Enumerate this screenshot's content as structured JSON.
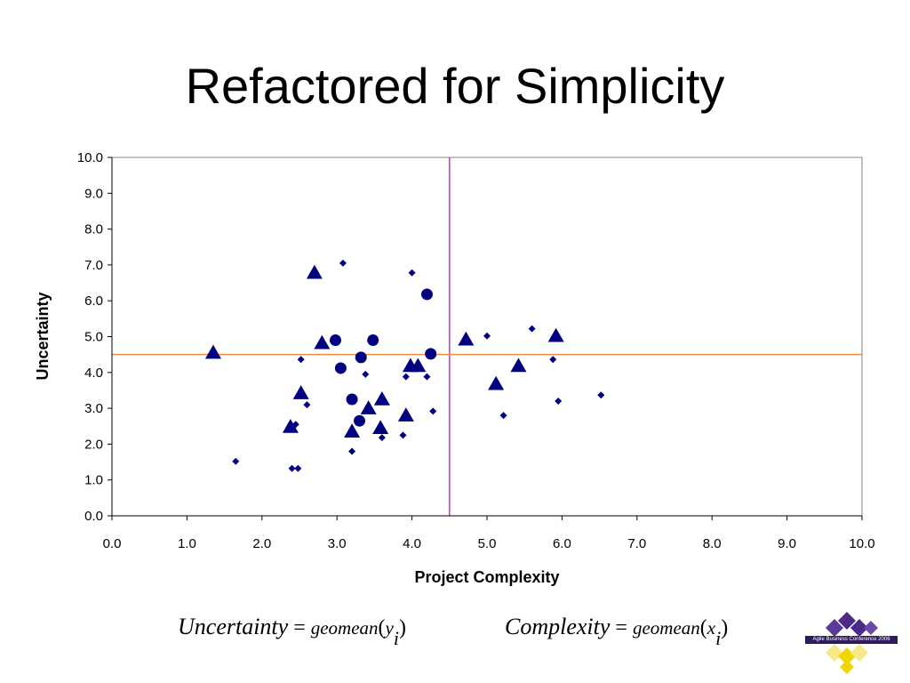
{
  "slide": {
    "title": "Refactored for Simplicity"
  },
  "formulas": {
    "uncertainty": {
      "lhs": "Uncertainty",
      "eq": "=",
      "fn": "geomean",
      "open": "(",
      "arg": "y",
      "sub": "i",
      "close": ")"
    },
    "complexity": {
      "lhs": "Complexity",
      "eq": "=",
      "fn": "geomean",
      "open": "(",
      "arg": "x",
      "sub": "i",
      "close": ")"
    }
  },
  "logo": {
    "text": "Agile Business Conference 2006",
    "colors": [
      "#4b2a8a",
      "#f2d600"
    ]
  },
  "chart_data": {
    "type": "scatter",
    "title": "",
    "xlabel": "Project Complexity",
    "ylabel": "Uncertainty",
    "xlim": [
      0,
      10
    ],
    "ylim": [
      0,
      10
    ],
    "x_ticks": [
      "0.0",
      "1.0",
      "2.0",
      "3.0",
      "4.0",
      "5.0",
      "6.0",
      "7.0",
      "8.0",
      "9.0",
      "10.0"
    ],
    "y_ticks": [
      "0.0",
      "1.0",
      "2.0",
      "3.0",
      "4.0",
      "5.0",
      "6.0",
      "7.0",
      "8.0",
      "9.0",
      "10.0"
    ],
    "grid": false,
    "marker_color": "#000080",
    "reference_lines": [
      {
        "orientation": "vertical",
        "value": 4.5,
        "color": "#cc33cc"
      },
      {
        "orientation": "horizontal",
        "value": 4.5,
        "color": "#f08a3c"
      }
    ],
    "series": [
      {
        "marker": "diamond",
        "points": [
          [
            3.08,
            7.05
          ],
          [
            4.0,
            6.78
          ],
          [
            5.6,
            5.22
          ],
          [
            5.0,
            5.02
          ],
          [
            2.52,
            4.36
          ],
          [
            5.88,
            4.36
          ],
          [
            3.38,
            3.95
          ],
          [
            3.92,
            3.88
          ],
          [
            4.2,
            3.88
          ],
          [
            2.6,
            3.1
          ],
          [
            5.95,
            3.2
          ],
          [
            6.52,
            3.37
          ],
          [
            4.28,
            2.92
          ],
          [
            5.22,
            2.8
          ],
          [
            2.45,
            2.55
          ],
          [
            3.6,
            2.18
          ],
          [
            3.88,
            2.25
          ],
          [
            3.2,
            1.8
          ],
          [
            1.65,
            1.52
          ],
          [
            2.4,
            1.32
          ],
          [
            2.48,
            1.32
          ]
        ]
      },
      {
        "marker": "circle",
        "points": [
          [
            4.2,
            6.18
          ],
          [
            2.98,
            4.9
          ],
          [
            3.48,
            4.9
          ],
          [
            3.05,
            4.12
          ],
          [
            3.32,
            4.42
          ],
          [
            4.25,
            4.52
          ],
          [
            3.2,
            3.25
          ],
          [
            3.3,
            2.65
          ]
        ]
      },
      {
        "marker": "triangle",
        "points": [
          [
            2.7,
            6.78
          ],
          [
            2.8,
            4.82
          ],
          [
            1.35,
            4.55
          ],
          [
            4.72,
            4.92
          ],
          [
            5.92,
            5.02
          ],
          [
            3.98,
            4.18
          ],
          [
            4.08,
            4.18
          ],
          [
            5.42,
            4.18
          ],
          [
            5.12,
            3.68
          ],
          [
            2.52,
            3.42
          ],
          [
            3.6,
            3.25
          ],
          [
            3.42,
            3.0
          ],
          [
            3.92,
            2.8
          ],
          [
            2.38,
            2.48
          ],
          [
            3.58,
            2.45
          ],
          [
            3.2,
            2.35
          ]
        ]
      }
    ]
  }
}
